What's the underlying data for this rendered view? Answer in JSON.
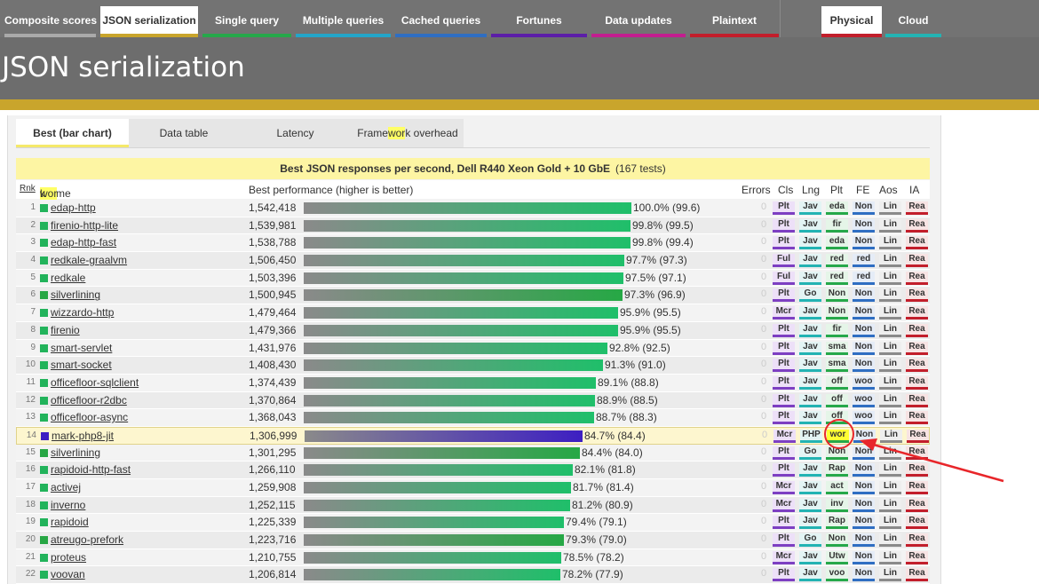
{
  "nav": {
    "tabs": [
      {
        "label": "Composite scores",
        "active": false,
        "color": "#aaaaaa"
      },
      {
        "label": "JSON serialization",
        "active": true,
        "color": "#c9a52c"
      },
      {
        "label": "Single query",
        "active": false,
        "color": "#26a84a"
      },
      {
        "label": "Multiple queries",
        "active": false,
        "color": "#23a5c9"
      },
      {
        "label": "Cached queries",
        "active": false,
        "color": "#2f6ec2"
      },
      {
        "label": "Fortunes",
        "active": false,
        "color": "#5c1ea8"
      },
      {
        "label": "Data updates",
        "active": false,
        "color": "#c21e8f"
      },
      {
        "label": "Plaintext",
        "active": false,
        "color": "#c21e2b"
      }
    ],
    "env_tabs": [
      {
        "label": "Physical",
        "active": true,
        "color": "#c21e2b"
      },
      {
        "label": "Cloud",
        "active": false,
        "color": "#23b3b3"
      }
    ]
  },
  "page": {
    "title": "JSON serialization"
  },
  "subtabs": [
    {
      "label": "Best (bar chart)",
      "active": true
    },
    {
      "label": "Data table",
      "active": false
    },
    {
      "label": "Latency",
      "active": false
    },
    {
      "label_pre": "Frame",
      "label_hl": "wor",
      "label_post": "k overhead",
      "active": false
    }
  ],
  "caption": {
    "text": "Best JSON responses per second, Dell R440 Xeon Gold + 10 GbE",
    "tests": "(167 tests)"
  },
  "columns": {
    "rnk": "Rnk",
    "fw_pre": "Frame",
    "fw_hl": "wor",
    "fw_post": "k",
    "perf": "Best performance (higher is better)",
    "errors": "Errors",
    "cls": "Cls",
    "lng": "Lng",
    "plt": "Plt",
    "fe": "FE",
    "aos": "Aos",
    "ia": "IA"
  },
  "chart_data": {
    "type": "bar",
    "title": "Best JSON responses per second, Dell R440 Xeon Gold + 10 GbE",
    "xlabel": "Best performance (higher is better)",
    "categories": [
      "edap-http",
      "firenio-http-lite",
      "edap-http-fast",
      "redkale-graalvm",
      "redkale",
      "silverlining",
      "wizzardo-http",
      "firenio",
      "smart-servlet",
      "smart-socket",
      "officefloor-sqlclient",
      "officefloor-r2dbc",
      "officefloor-async",
      "mark-php8-jit",
      "silverlining",
      "rapidoid-http-fast",
      "activej",
      "inverno",
      "rapidoid",
      "atreugo-prefork",
      "proteus",
      "voovan"
    ],
    "values": [
      1542418,
      1539981,
      1538788,
      1506450,
      1503396,
      1500945,
      1479464,
      1479366,
      1431976,
      1408430,
      1374439,
      1370864,
      1368043,
      1306999,
      1301295,
      1266110,
      1259908,
      1252115,
      1225339,
      1223716,
      1210755,
      1206814
    ],
    "percent": [
      100.0,
      99.8,
      99.8,
      97.7,
      97.5,
      97.3,
      95.9,
      95.9,
      92.8,
      91.3,
      89.1,
      88.9,
      88.7,
      84.7,
      84.4,
      82.1,
      81.7,
      81.2,
      79.4,
      79.3,
      78.5,
      78.2
    ]
  },
  "rows": [
    {
      "rank": "1",
      "name": "edap-http",
      "rps": "1,542,418",
      "pct": 100.0,
      "pct_label": "100.0% (99.6)",
      "err": "0",
      "cls": "Plt",
      "lng": "Jav",
      "plt": "eda",
      "fe": "Non",
      "aos": "Lin",
      "ia": "Rea",
      "swatch": "#22b35b"
    },
    {
      "rank": "2",
      "name": "firenio-http-lite",
      "rps": "1,539,981",
      "pct": 99.8,
      "pct_label": "99.8% (99.5)",
      "err": "0",
      "cls": "Plt",
      "lng": "Jav",
      "plt": "fir",
      "fe": "Non",
      "aos": "Lin",
      "ia": "Rea",
      "swatch": "#22b35b"
    },
    {
      "rank": "3",
      "name": "edap-http-fast",
      "rps": "1,538,788",
      "pct": 99.8,
      "pct_label": "99.8% (99.4)",
      "err": "0",
      "cls": "Plt",
      "lng": "Jav",
      "plt": "eda",
      "fe": "Non",
      "aos": "Lin",
      "ia": "Rea",
      "swatch": "#22b35b"
    },
    {
      "rank": "4",
      "name": "redkale-graalvm",
      "rps": "1,506,450",
      "pct": 97.7,
      "pct_label": "97.7% (97.3)",
      "err": "0",
      "cls": "Ful",
      "lng": "Jav",
      "plt": "red",
      "fe": "red",
      "aos": "Lin",
      "ia": "Rea",
      "swatch": "#22b35b"
    },
    {
      "rank": "5",
      "name": "redkale",
      "rps": "1,503,396",
      "pct": 97.5,
      "pct_label": "97.5% (97.1)",
      "err": "0",
      "cls": "Ful",
      "lng": "Jav",
      "plt": "red",
      "fe": "red",
      "aos": "Lin",
      "ia": "Rea",
      "swatch": "#22b35b"
    },
    {
      "rank": "6",
      "name": "silverlining",
      "rps": "1,500,945",
      "pct": 97.3,
      "pct_label": "97.3% (96.9)",
      "err": "0",
      "cls": "Plt",
      "lng": "Go",
      "plt": "Non",
      "fe": "Non",
      "aos": "Lin",
      "ia": "Rea",
      "swatch": "#28a745"
    },
    {
      "rank": "7",
      "name": "wizzardo-http",
      "rps": "1,479,464",
      "pct": 95.9,
      "pct_label": "95.9% (95.5)",
      "err": "0",
      "cls": "Mcr",
      "lng": "Jav",
      "plt": "Non",
      "fe": "Non",
      "aos": "Lin",
      "ia": "Rea",
      "swatch": "#22b35b"
    },
    {
      "rank": "8",
      "name": "firenio",
      "rps": "1,479,366",
      "pct": 95.9,
      "pct_label": "95.9% (95.5)",
      "err": "0",
      "cls": "Plt",
      "lng": "Jav",
      "plt": "fir",
      "fe": "Non",
      "aos": "Lin",
      "ia": "Rea",
      "swatch": "#22b35b"
    },
    {
      "rank": "9",
      "name": "smart-servlet",
      "rps": "1,431,976",
      "pct": 92.8,
      "pct_label": "92.8% (92.5)",
      "err": "0",
      "cls": "Plt",
      "lng": "Jav",
      "plt": "sma",
      "fe": "Non",
      "aos": "Lin",
      "ia": "Rea",
      "swatch": "#22b35b"
    },
    {
      "rank": "10",
      "name": "smart-socket",
      "rps": "1,408,430",
      "pct": 91.3,
      "pct_label": "91.3% (91.0)",
      "err": "0",
      "cls": "Plt",
      "lng": "Jav",
      "plt": "sma",
      "fe": "Non",
      "aos": "Lin",
      "ia": "Rea",
      "swatch": "#22b35b"
    },
    {
      "rank": "11",
      "name": "officefloor-sqlclient",
      "rps": "1,374,439",
      "pct": 89.1,
      "pct_label": "89.1% (88.8)",
      "err": "0",
      "cls": "Plt",
      "lng": "Jav",
      "plt": "off",
      "fe": "woo",
      "aos": "Lin",
      "ia": "Rea",
      "swatch": "#22b35b"
    },
    {
      "rank": "12",
      "name": "officefloor-r2dbc",
      "rps": "1,370,864",
      "pct": 88.9,
      "pct_label": "88.9% (88.5)",
      "err": "0",
      "cls": "Plt",
      "lng": "Jav",
      "plt": "off",
      "fe": "woo",
      "aos": "Lin",
      "ia": "Rea",
      "swatch": "#22b35b"
    },
    {
      "rank": "13",
      "name": "officefloor-async",
      "rps": "1,368,043",
      "pct": 88.7,
      "pct_label": "88.7% (88.3)",
      "err": "0",
      "cls": "Plt",
      "lng": "Jav",
      "plt": "off",
      "fe": "woo",
      "aos": "Lin",
      "ia": "Rea",
      "swatch": "#22b35b"
    },
    {
      "rank": "14",
      "name": "mark-php8-jit",
      "rps": "1,306,999",
      "pct": 84.7,
      "pct_label": "84.7% (84.4)",
      "err": "0",
      "cls": "Mcr",
      "lng": "PHP",
      "plt": "wor",
      "fe": "Non",
      "aos": "Lin",
      "ia": "Rea",
      "swatch": "#3d1fc2",
      "focus": true
    },
    {
      "rank": "15",
      "name": "silverlining",
      "rps": "1,301,295",
      "pct": 84.4,
      "pct_label": "84.4% (84.0)",
      "err": "0",
      "cls": "Plt",
      "lng": "Go",
      "plt": "Non",
      "fe": "Non",
      "aos": "Lin",
      "ia": "Rea",
      "swatch": "#28a745"
    },
    {
      "rank": "16",
      "name": "rapidoid-http-fast",
      "rps": "1,266,110",
      "pct": 82.1,
      "pct_label": "82.1% (81.8)",
      "err": "0",
      "cls": "Plt",
      "lng": "Jav",
      "plt": "Rap",
      "fe": "Non",
      "aos": "Lin",
      "ia": "Rea",
      "swatch": "#22b35b"
    },
    {
      "rank": "17",
      "name": "activej",
      "rps": "1,259,908",
      "pct": 81.7,
      "pct_label": "81.7% (81.4)",
      "err": "0",
      "cls": "Mcr",
      "lng": "Jav",
      "plt": "act",
      "fe": "Non",
      "aos": "Lin",
      "ia": "Rea",
      "swatch": "#22b35b"
    },
    {
      "rank": "18",
      "name": "inverno",
      "rps": "1,252,115",
      "pct": 81.2,
      "pct_label": "81.2% (80.9)",
      "err": "0",
      "cls": "Mcr",
      "lng": "Jav",
      "plt": "inv",
      "fe": "Non",
      "aos": "Lin",
      "ia": "Rea",
      "swatch": "#22b35b"
    },
    {
      "rank": "19",
      "name": "rapidoid",
      "rps": "1,225,339",
      "pct": 79.4,
      "pct_label": "79.4% (79.1)",
      "err": "0",
      "cls": "Plt",
      "lng": "Jav",
      "plt": "Rap",
      "fe": "Non",
      "aos": "Lin",
      "ia": "Rea",
      "swatch": "#22b35b"
    },
    {
      "rank": "20",
      "name": "atreugo-prefork",
      "rps": "1,223,716",
      "pct": 79.3,
      "pct_label": "79.3% (79.0)",
      "err": "0",
      "cls": "Plt",
      "lng": "Go",
      "plt": "Non",
      "fe": "Non",
      "aos": "Lin",
      "ia": "Rea",
      "swatch": "#28a745"
    },
    {
      "rank": "21",
      "name": "proteus",
      "rps": "1,210,755",
      "pct": 78.5,
      "pct_label": "78.5% (78.2)",
      "err": "0",
      "cls": "Mcr",
      "lng": "Jav",
      "plt": "Utw",
      "fe": "Non",
      "aos": "Lin",
      "ia": "Rea",
      "swatch": "#22b35b"
    },
    {
      "rank": "22",
      "name": "voovan",
      "rps": "1,206,814",
      "pct": 78.2,
      "pct_label": "78.2% (77.9)",
      "err": "0",
      "cls": "Plt",
      "lng": "Jav",
      "plt": "voo",
      "fe": "Non",
      "aos": "Lin",
      "ia": "Rea",
      "swatch": "#22b35b"
    }
  ],
  "colors": {
    "bar_start": "#8a8a8a",
    "bar_java": "#1fbf6a",
    "bar_php": "#3d1fc2",
    "bar_go": "#26a845",
    "annotation": "#e8262a",
    "highlight": "#ffff66"
  }
}
